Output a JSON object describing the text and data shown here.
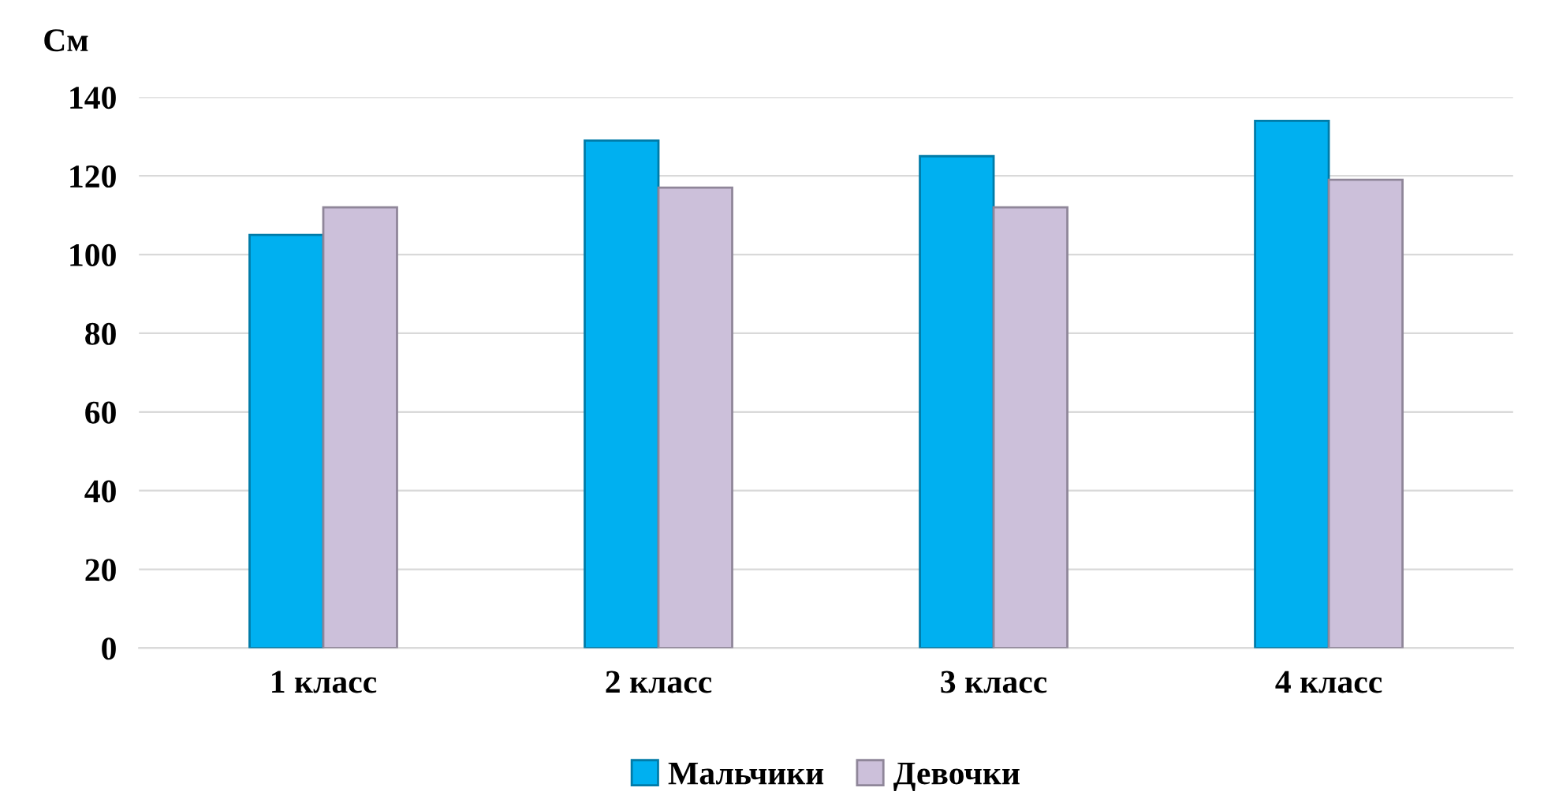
{
  "chart_data": {
    "type": "bar",
    "ylabel": "См",
    "categories": [
      "1 класс",
      "2 класс",
      "3 класс",
      "4 класс"
    ],
    "series": [
      {
        "name": "Мальчики",
        "color": "#00b0f0",
        "values": [
          105,
          129,
          125,
          134
        ]
      },
      {
        "name": "Девочки",
        "color": "#ccc0da",
        "values": [
          112,
          117,
          112,
          119
        ]
      }
    ],
    "ylim": [
      0,
      140
    ],
    "yticks": [
      0,
      20,
      40,
      60,
      80,
      100,
      120,
      140
    ],
    "grid": "y",
    "legend": "bottom"
  }
}
